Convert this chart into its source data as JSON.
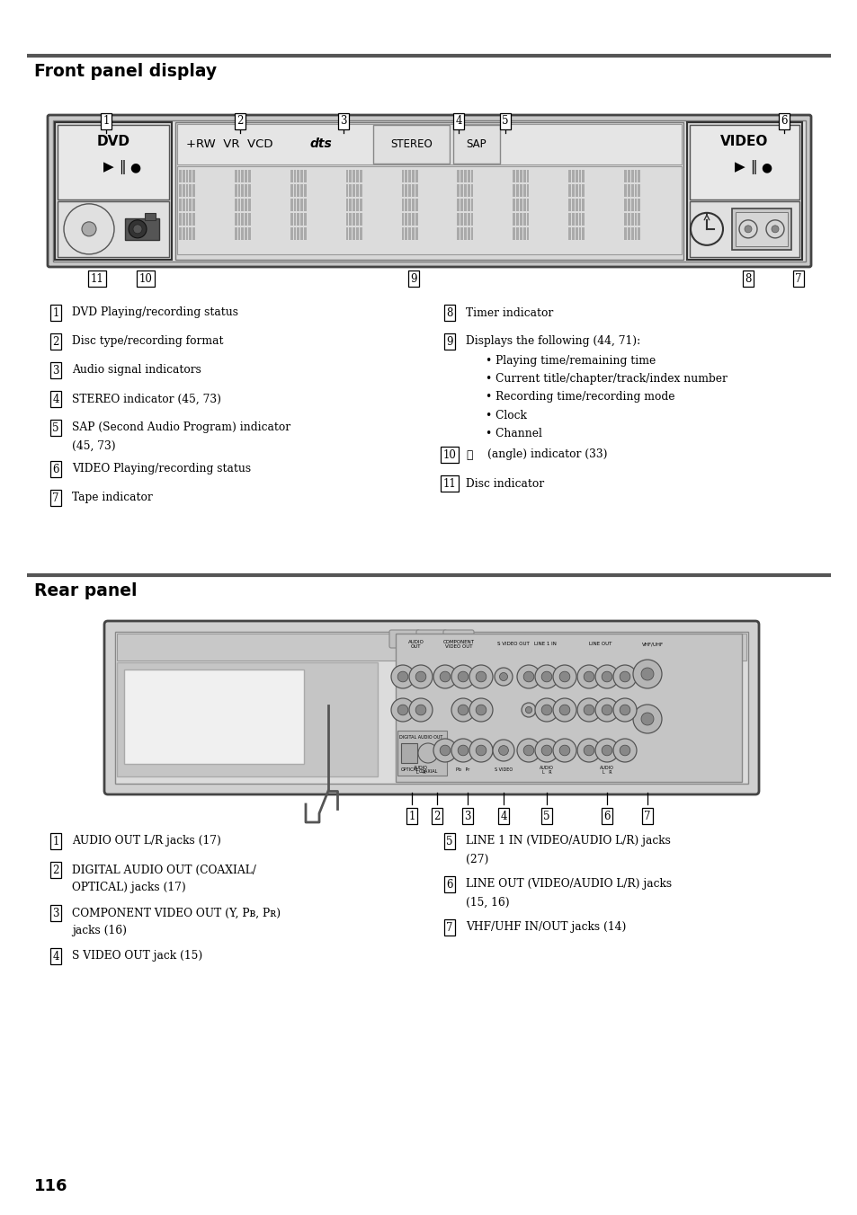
{
  "background_color": "#ffffff",
  "page_number": "116",
  "section1_title": "Front panel display",
  "section2_title": "Rear panel",
  "front_items_left": [
    {
      "num": "1",
      "text": "DVD Playing/recording status",
      "indent2": ""
    },
    {
      "num": "2",
      "text": "Disc type/recording format",
      "indent2": ""
    },
    {
      "num": "3",
      "text": "Audio signal indicators",
      "indent2": ""
    },
    {
      "num": "4",
      "text": "STEREO indicator (45, 73)",
      "indent2": ""
    },
    {
      "num": "5",
      "text": "SAP (Second Audio Program) indicator",
      "indent2": "(45, 73)"
    },
    {
      "num": "6",
      "text": "VIDEO Playing/recording status",
      "indent2": ""
    },
    {
      "num": "7",
      "text": "Tape indicator",
      "indent2": ""
    }
  ],
  "front_items_right": [
    {
      "num": "8",
      "text": "Timer indicator",
      "bullets": []
    },
    {
      "num": "9",
      "text": "Displays the following (44, 71):",
      "bullets": [
        "Playing time/remaining time",
        "Current title/chapter/track/index number",
        "Recording time/recording mode",
        "Clock",
        "Channel"
      ]
    },
    {
      "num": "10",
      "text": "     (angle) indicator (33)",
      "bullets": [],
      "angle_icon": true
    },
    {
      "num": "11",
      "text": "Disc indicator",
      "bullets": []
    }
  ],
  "rear_items_left": [
    {
      "num": "1",
      "text": "AUDIO OUT L/R jacks (17)",
      "indent2": ""
    },
    {
      "num": "2",
      "text": "DIGITAL AUDIO OUT (COAXIAL/",
      "indent2": "OPTICAL) jacks (17)"
    },
    {
      "num": "3",
      "text": "COMPONENT VIDEO OUT (Y, Pʙ, Pʀ)",
      "indent2": "jacks (16)"
    },
    {
      "num": "4",
      "text": "S VIDEO OUT jack (15)",
      "indent2": ""
    }
  ],
  "rear_items_right": [
    {
      "num": "5",
      "text": "LINE 1 IN (VIDEO/AUDIO L/R) jacks",
      "indent2": "(27)"
    },
    {
      "num": "6",
      "text": "LINE OUT (VIDEO/AUDIO L/R) jacks",
      "indent2": "(15, 16)"
    },
    {
      "num": "7",
      "text": "VHF/UHF IN/OUT jacks (14)",
      "indent2": ""
    }
  ]
}
